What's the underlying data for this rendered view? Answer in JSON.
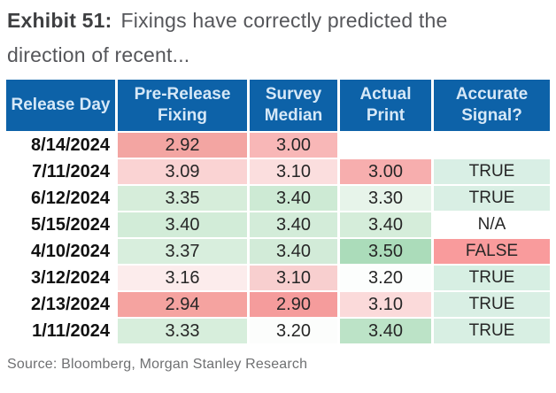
{
  "chart_data": {
    "type": "table",
    "title_bold": "Exhibit 51:",
    "title_rest": "Fixings have correctly predicted the direction of recent...",
    "columns": [
      "Release Day",
      "Pre-Release Fixing",
      "Survey Median",
      "Actual Print",
      "Accurate Signal?"
    ],
    "rows": [
      {
        "date": "8/14/2024",
        "fixing": {
          "v": "2.92",
          "bg": "#f3a5a2"
        },
        "survey": {
          "v": "3.00",
          "bg": "#f8b7b7"
        },
        "actual": {
          "v": "",
          "bg": "#ffffff"
        },
        "signal": {
          "v": "",
          "bg": "#ffffff"
        }
      },
      {
        "date": "7/11/2024",
        "fixing": {
          "v": "3.09",
          "bg": "#fad3d3"
        },
        "survey": {
          "v": "3.10",
          "bg": "#fbdede"
        },
        "actual": {
          "v": "3.00",
          "bg": "#f7aeae"
        },
        "signal": {
          "v": "TRUE",
          "bg": "#d9efe5"
        }
      },
      {
        "date": "6/12/2024",
        "fixing": {
          "v": "3.35",
          "bg": "#d6edda"
        },
        "survey": {
          "v": "3.40",
          "bg": "#cdead4"
        },
        "actual": {
          "v": "3.30",
          "bg": "#e7f4ea"
        },
        "signal": {
          "v": "TRUE",
          "bg": "#d9efe4"
        }
      },
      {
        "date": "5/15/2024",
        "fixing": {
          "v": "3.40",
          "bg": "#d2ecd8"
        },
        "survey": {
          "v": "3.40",
          "bg": "#d3ecd9"
        },
        "actual": {
          "v": "3.40",
          "bg": "#d5edda"
        },
        "signal": {
          "v": "N/A",
          "bg": "#ffffff"
        }
      },
      {
        "date": "4/10/2024",
        "fixing": {
          "v": "3.37",
          "bg": "#d8eedd"
        },
        "survey": {
          "v": "3.40",
          "bg": "#d2ebd8"
        },
        "actual": {
          "v": "3.50",
          "bg": "#abdcba"
        },
        "signal": {
          "v": "FALSE",
          "bg": "#f99b9c"
        }
      },
      {
        "date": "3/12/2024",
        "fixing": {
          "v": "3.16",
          "bg": "#fcecec"
        },
        "survey": {
          "v": "3.10",
          "bg": "#f8cfcf"
        },
        "actual": {
          "v": "3.20",
          "bg": "#fcfefd"
        },
        "signal": {
          "v": "TRUE",
          "bg": "#d7efe3"
        }
      },
      {
        "date": "2/13/2024",
        "fixing": {
          "v": "2.94",
          "bg": "#f5a3a0"
        },
        "survey": {
          "v": "2.90",
          "bg": "#f59c9c"
        },
        "actual": {
          "v": "3.10",
          "bg": "#fbdada"
        },
        "signal": {
          "v": "TRUE",
          "bg": "#d9efe4"
        }
      },
      {
        "date": "1/11/2024",
        "fixing": {
          "v": "3.33",
          "bg": "#d7eedc"
        },
        "survey": {
          "v": "3.20",
          "bg": "#fcfdfc"
        },
        "actual": {
          "v": "3.40",
          "bg": "#bce3c7"
        },
        "signal": {
          "v": "TRUE",
          "bg": "#d8efe3"
        }
      }
    ],
    "source": "Source: Bloomberg, Morgan Stanley Research",
    "layout": {
      "header_bg": "#0d62a8",
      "header_text_color": "#d6e8f7",
      "positive_color": "#d5edda",
      "negative_color": "#f5a3a0",
      "true_signal_color": "#d9efe4",
      "false_signal_color": "#f99b9c"
    }
  }
}
